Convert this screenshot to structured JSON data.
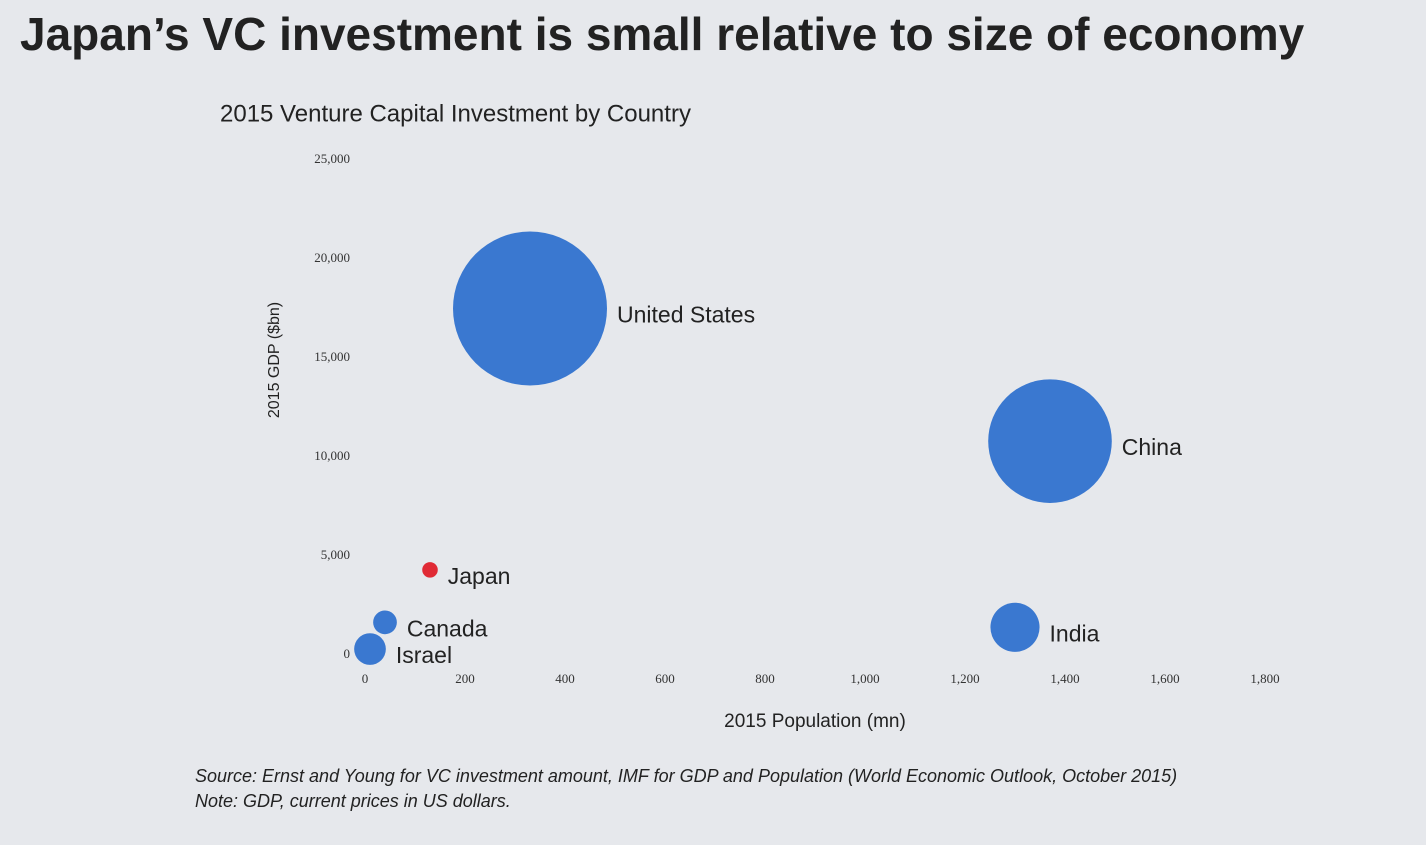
{
  "chart_data": {
    "type": "bubble",
    "title": "Japan’s VC investment is small relative to size of economy",
    "subtitle": "2015 Venture Capital Investment by Country",
    "x_label": "2015 Population (mn)",
    "y_label": "2015 GDP ($bn)",
    "labels": [
      "United States",
      "China",
      "India",
      "Japan",
      "Canada",
      "Israel"
    ],
    "x": [
      330,
      1370,
      1300,
      130,
      40,
      10
    ],
    "values": [
      17500,
      10800,
      1400,
      4300,
      1650,
      300
    ],
    "sizes": [
      59,
      38,
      6,
      0.6,
      1.4,
      2.5
    ],
    "colors": [
      "#3a78d0",
      "#3a78d0",
      "#3a78d0",
      "#e02a35",
      "#3a78d0",
      "#3a78d0"
    ],
    "xlim": [
      0,
      1800
    ],
    "ylim": [
      0,
      25000
    ],
    "xticks": [
      0,
      200,
      400,
      600,
      800,
      {
        "value": 1000,
        "label": "1,000"
      },
      {
        "value": 1200,
        "label": "1,200"
      },
      {
        "value": 1400,
        "label": "1,400"
      },
      {
        "value": 1600,
        "label": "1,600"
      },
      {
        "value": 1800,
        "label": "1,800"
      }
    ],
    "yticks": [
      0,
      {
        "value": 5000,
        "label": "5,000"
      },
      {
        "value": 10000,
        "label": "10,000"
      },
      {
        "value": 15000,
        "label": "15,000"
      },
      {
        "value": 20000,
        "label": "20,000"
      },
      {
        "value": 25000,
        "label": "25,000"
      }
    ],
    "notes": [
      "Source: Ernst and Young for VC investment amount, IMF for GDP and Population (World Economic Outlook, October 2015)",
      "Note: GDP, current prices in US dollars."
    ]
  }
}
